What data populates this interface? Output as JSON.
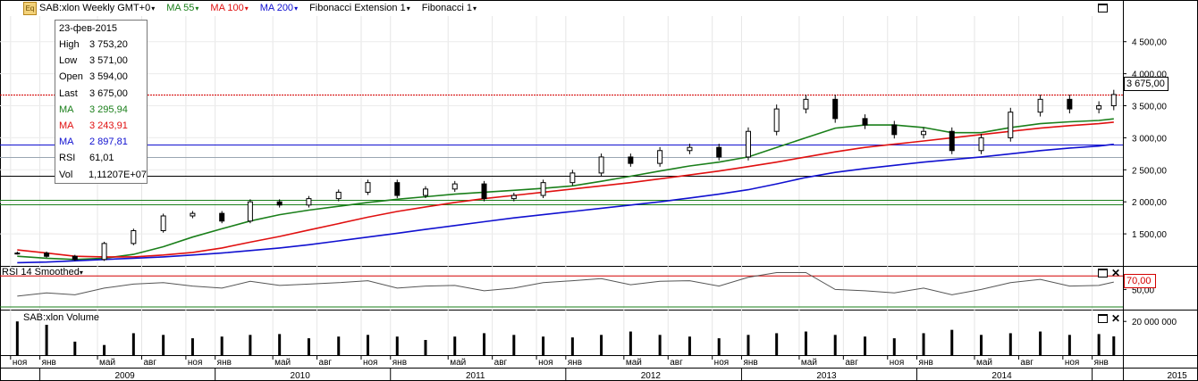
{
  "toolbar": {
    "symbol_label": "SAB:xlon Weekly GMT+0",
    "ma55_label": "MA 55",
    "ma100_label": "MA 100",
    "ma200_label": "MA 200",
    "fib_ext_label": "Fibonacci Extension 1",
    "fib_label": "Fibonacci 1",
    "dropdown_arrow": "▾",
    "icon_text": "Eq"
  },
  "colors": {
    "ma55": "#1a7f1a",
    "ma100": "#e01010",
    "ma200": "#1010d0",
    "fib_level": "#1a7f1a",
    "last_price_line": "#d40000",
    "rsi_overbought": "#d40000"
  },
  "infobox": {
    "date": "23-фев-2015",
    "rows": [
      {
        "label": "High",
        "value": "3 753,20",
        "color": "#000000"
      },
      {
        "label": "Low",
        "value": "3 571,00",
        "color": "#000000"
      },
      {
        "label": "Open",
        "value": "3 594,00",
        "color": "#000000"
      },
      {
        "label": "Last",
        "value": "3 675,00",
        "color": "#000000"
      },
      {
        "label": "MA",
        "value": "3 295,94",
        "color": "#1a7f1a"
      },
      {
        "label": "MA",
        "value": "3 243,91",
        "color": "#e01010"
      },
      {
        "label": "MA",
        "value": "2 897,81",
        "color": "#1010d0"
      },
      {
        "label": "RSI",
        "value": "61,01",
        "color": "#000000"
      },
      {
        "label": "Vol",
        "value": "1,11207E+07",
        "color": "#000000"
      }
    ]
  },
  "price_tag": "3 675,00",
  "rsi_tag": "70,00",
  "rsi_title": "RSI 14 Smoothed",
  "volume_title": "SAB:xlon Volume",
  "chart_data": [
    {
      "type": "line",
      "title": "SAB:xlon Weekly GMT+0",
      "x": [
        "2008-11",
        "2009-01",
        "2009-03",
        "2009-05",
        "2009-07",
        "2009-09",
        "2009-11",
        "2010-01",
        "2010-03",
        "2010-05",
        "2010-07",
        "2010-09",
        "2010-11",
        "2011-01",
        "2011-03",
        "2011-05",
        "2011-07",
        "2011-09",
        "2011-11",
        "2012-01",
        "2012-03",
        "2012-05",
        "2012-07",
        "2012-09",
        "2012-11",
        "2013-01",
        "2013-03",
        "2013-05",
        "2013-07",
        "2013-09",
        "2013-11",
        "2014-01",
        "2014-03",
        "2014-05",
        "2014-07",
        "2014-09",
        "2014-11",
        "2015-01",
        "2015-02"
      ],
      "series": [
        {
          "name": "SAB:xlon",
          "values": [
            1200,
            1150,
            1100,
            1350,
            1550,
            1780,
            1820,
            1700,
            2000,
            1950,
            2050,
            2150,
            2300,
            2100,
            2200,
            2280,
            2050,
            2100,
            2300,
            2450,
            2700,
            2600,
            2800,
            2850,
            2700,
            3100,
            3450,
            3600,
            3300,
            3200,
            3050,
            3100,
            2800,
            3000,
            3400,
            3600,
            3450,
            3500,
            3675
          ]
        },
        {
          "name": "MA 55",
          "values": [
            1150,
            1120,
            1100,
            1120,
            1180,
            1300,
            1450,
            1580,
            1700,
            1800,
            1870,
            1930,
            1990,
            2040,
            2080,
            2120,
            2150,
            2180,
            2210,
            2250,
            2320,
            2400,
            2480,
            2560,
            2620,
            2700,
            2850,
            3000,
            3150,
            3200,
            3200,
            3160,
            3080,
            3080,
            3160,
            3220,
            3250,
            3270,
            3296
          ]
        },
        {
          "name": "MA 100",
          "values": [
            1250,
            1200,
            1150,
            1140,
            1140,
            1170,
            1210,
            1280,
            1370,
            1460,
            1560,
            1660,
            1760,
            1850,
            1920,
            1990,
            2050,
            2100,
            2150,
            2200,
            2250,
            2300,
            2360,
            2420,
            2480,
            2550,
            2620,
            2700,
            2780,
            2850,
            2900,
            2950,
            3000,
            3050,
            3100,
            3150,
            3190,
            3220,
            3244
          ]
        },
        {
          "name": "MA 200",
          "values": [
            1050,
            1060,
            1080,
            1100,
            1120,
            1140,
            1170,
            1200,
            1240,
            1280,
            1330,
            1390,
            1450,
            1510,
            1570,
            1630,
            1690,
            1750,
            1800,
            1850,
            1900,
            1950,
            2000,
            2060,
            2120,
            2190,
            2280,
            2380,
            2460,
            2520,
            2570,
            2620,
            2660,
            2700,
            2750,
            2800,
            2840,
            2870,
            2898
          ]
        }
      ],
      "yticks": [
        1500,
        2000,
        2500,
        3000,
        3500,
        4000,
        4500
      ],
      "ytick_labels": [
        "1 500,00",
        "2 000,00",
        "2 500,00",
        "3 000,00",
        "3 500,00",
        "4 000,00",
        "4 500,00"
      ],
      "ylim": [
        1000,
        4900
      ],
      "hlines": [
        3675,
        2900,
        2700,
        2400,
        2030,
        1960
      ],
      "grid": true
    },
    {
      "type": "line",
      "title": "RSI 14 Smoothed",
      "series": [
        {
          "name": "RSI",
          "values": [
            40,
            45,
            42,
            52,
            58,
            60,
            55,
            52,
            62,
            56,
            58,
            60,
            63,
            52,
            55,
            56,
            48,
            52,
            60,
            63,
            66,
            57,
            62,
            63,
            55,
            68,
            75,
            75,
            50,
            48,
            45,
            52,
            42,
            50,
            60,
            65,
            55,
            56,
            61
          ]
        },
        {
          "name": "Overbought",
          "values": [
            70,
            70,
            70,
            70,
            70,
            70,
            70,
            70,
            70,
            70,
            70,
            70,
            70,
            70,
            70,
            70,
            70,
            70,
            70,
            70,
            70,
            70,
            70,
            70,
            70,
            70,
            70,
            70,
            70,
            70,
            70,
            70,
            70,
            70,
            70,
            70,
            70,
            70,
            70
          ]
        }
      ],
      "yticks": [
        50,
        70
      ],
      "ytick_labels": [
        "50,00",
        "70,00"
      ],
      "ylim": [
        20,
        85
      ]
    },
    {
      "type": "bar",
      "title": "SAB:xlon Volume",
      "series": [
        {
          "name": "Volume",
          "values": [
            20000000,
            18000000,
            8000000,
            6000000,
            13000000,
            12000000,
            10000000,
            11000000,
            12000000,
            12500000,
            10000000,
            11000000,
            12000000,
            11000000,
            9000000,
            11000000,
            13000000,
            12000000,
            11000000,
            10500000,
            12000000,
            14000000,
            12000000,
            11000000,
            10000000,
            12000000,
            13000000,
            14000000,
            12000000,
            11000000,
            10000000,
            13000000,
            15000000,
            12000000,
            13000000,
            14000000,
            12000000,
            12500000,
            11120700
          ]
        }
      ],
      "yticks": [
        20000000
      ],
      "ytick_labels": [
        "20 000 000"
      ],
      "ylim": [
        0,
        27000000
      ]
    }
  ],
  "x_axis": {
    "months": [
      {
        "label": "ноя",
        "date": "2008-11-01"
      },
      {
        "label": "янв",
        "date": "2009-01-01"
      },
      {
        "label": "май",
        "date": "2009-05-01"
      },
      {
        "label": "авг",
        "date": "2009-08-01"
      },
      {
        "label": "ноя",
        "date": "2009-11-01"
      },
      {
        "label": "янв",
        "date": "2010-01-01"
      },
      {
        "label": "май",
        "date": "2010-05-01"
      },
      {
        "label": "авг",
        "date": "2010-08-01"
      },
      {
        "label": "ноя",
        "date": "2010-11-01"
      },
      {
        "label": "янв",
        "date": "2011-01-01"
      },
      {
        "label": "май",
        "date": "2011-05-01"
      },
      {
        "label": "авг",
        "date": "2011-08-01"
      },
      {
        "label": "ноя",
        "date": "2011-11-01"
      },
      {
        "label": "янв",
        "date": "2012-01-01"
      },
      {
        "label": "май",
        "date": "2012-05-01"
      },
      {
        "label": "авг",
        "date": "2012-08-01"
      },
      {
        "label": "ноя",
        "date": "2012-11-01"
      },
      {
        "label": "янв",
        "date": "2013-01-01"
      },
      {
        "label": "май",
        "date": "2013-05-01"
      },
      {
        "label": "авг",
        "date": "2013-08-01"
      },
      {
        "label": "ноя",
        "date": "2013-11-01"
      },
      {
        "label": "янв",
        "date": "2014-01-01"
      },
      {
        "label": "май",
        "date": "2014-05-01"
      },
      {
        "label": "авг",
        "date": "2014-08-01"
      },
      {
        "label": "ноя",
        "date": "2014-11-01"
      },
      {
        "label": "янв",
        "date": "2015-01-01"
      }
    ],
    "years": [
      {
        "label": "2009",
        "date": "2009-01-01"
      },
      {
        "label": "2010",
        "date": "2010-01-01"
      },
      {
        "label": "2011",
        "date": "2011-01-01"
      },
      {
        "label": "2012",
        "date": "2012-01-01"
      },
      {
        "label": "2013",
        "date": "2013-01-01"
      },
      {
        "label": "2014",
        "date": "2014-01-01"
      },
      {
        "label": "2015",
        "date": "2015-01-01"
      }
    ]
  }
}
